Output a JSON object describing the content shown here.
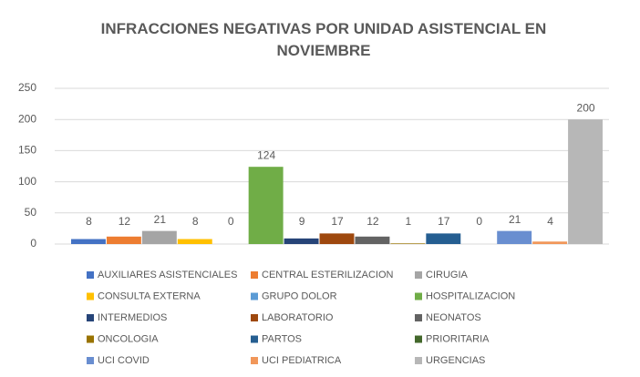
{
  "chart_data": {
    "type": "bar",
    "title": "INFRACCIONES NEGATIVAS POR UNIDAD ASISTENCIAL EN NOVIEMBRE",
    "ylim": [
      0,
      250
    ],
    "yticks": [
      0,
      50,
      100,
      150,
      200,
      250
    ],
    "grid": true,
    "series": [
      {
        "name": "AUXILIARES ASISTENCIALES",
        "color": "#4472c4",
        "values": [
          8
        ]
      },
      {
        "name": "CENTRAL ESTERILIZACION",
        "color": "#ed7d31",
        "values": [
          12
        ]
      },
      {
        "name": "CIRUGIA",
        "color": "#a5a5a5",
        "values": [
          21
        ]
      },
      {
        "name": "CONSULTA EXTERNA",
        "color": "#ffc000",
        "values": [
          8
        ]
      },
      {
        "name": "GRUPO DOLOR",
        "color": "#5b9bd5",
        "values": [
          0
        ]
      },
      {
        "name": "HOSPITALIZACION",
        "color": "#70ad47",
        "values": [
          124
        ]
      },
      {
        "name": "INTERMEDIOS",
        "color": "#264478",
        "values": [
          9
        ]
      },
      {
        "name": "LABORATORIO",
        "color": "#9e480e",
        "values": [
          17
        ]
      },
      {
        "name": "NEONATOS",
        "color": "#636363",
        "values": [
          12
        ]
      },
      {
        "name": "ONCOLOGIA",
        "color": "#997300",
        "values": [
          1
        ]
      },
      {
        "name": "PARTOS",
        "color": "#255e91",
        "values": [
          17
        ]
      },
      {
        "name": "PRIORITARIA",
        "color": "#43682b",
        "values": [
          0
        ]
      },
      {
        "name": "UCI COVID",
        "color": "#698ed0",
        "values": [
          21
        ]
      },
      {
        "name": "UCI PEDIATRICA",
        "color": "#f1975a",
        "values": [
          4
        ]
      },
      {
        "name": "URGENCIAS",
        "color": "#b7b7b7",
        "values": [
          200
        ]
      }
    ]
  }
}
